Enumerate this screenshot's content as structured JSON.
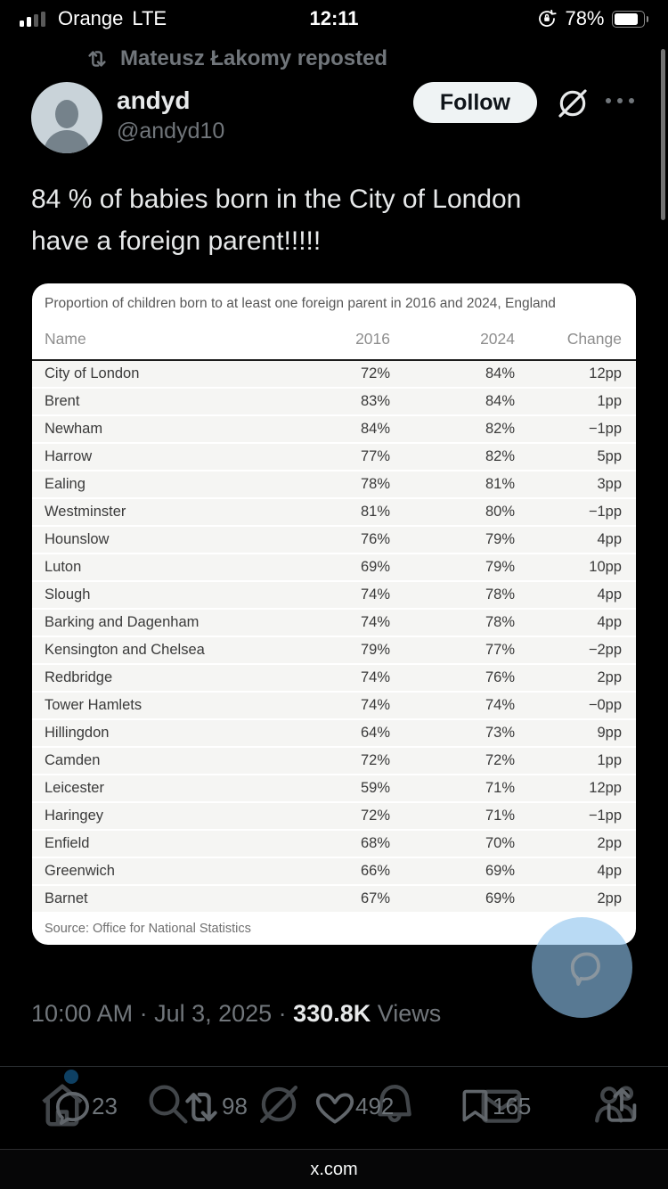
{
  "status_bar": {
    "carrier": "Orange",
    "network": "LTE",
    "time": "12:11",
    "battery_percent": "78%"
  },
  "repost_banner": {
    "text": "Mateusz Łakomy reposted"
  },
  "tweet": {
    "author_name": "andyd",
    "author_handle": "@andyd10",
    "follow_label": "Follow",
    "body_line1": "84 % of babies born in the City of London",
    "body_line2": "have a foreign parent!!!!!"
  },
  "table": {
    "title": "Proportion of children born to at least one foreign parent in 2016 and 2024, England",
    "columns": [
      "Name",
      "2016",
      "2024",
      "Change"
    ],
    "rows": [
      {
        "name": "City of London",
        "y2016": "72%",
        "y2024": "84%",
        "change": "12pp"
      },
      {
        "name": "Brent",
        "y2016": "83%",
        "y2024": "84%",
        "change": "1pp"
      },
      {
        "name": "Newham",
        "y2016": "84%",
        "y2024": "82%",
        "change": "−1pp"
      },
      {
        "name": "Harrow",
        "y2016": "77%",
        "y2024": "82%",
        "change": "5pp"
      },
      {
        "name": "Ealing",
        "y2016": "78%",
        "y2024": "81%",
        "change": "3pp"
      },
      {
        "name": "Westminster",
        "y2016": "81%",
        "y2024": "80%",
        "change": "−1pp"
      },
      {
        "name": "Hounslow",
        "y2016": "76%",
        "y2024": "79%",
        "change": "4pp"
      },
      {
        "name": "Luton",
        "y2016": "69%",
        "y2024": "79%",
        "change": "10pp"
      },
      {
        "name": "Slough",
        "y2016": "74%",
        "y2024": "78%",
        "change": "4pp"
      },
      {
        "name": "Barking and Dagenham",
        "y2016": "74%",
        "y2024": "78%",
        "change": "4pp"
      },
      {
        "name": "Kensington and Chelsea",
        "y2016": "79%",
        "y2024": "77%",
        "change": "−2pp"
      },
      {
        "name": "Redbridge",
        "y2016": "74%",
        "y2024": "76%",
        "change": "2pp"
      },
      {
        "name": "Tower Hamlets",
        "y2016": "74%",
        "y2024": "74%",
        "change": "−0pp"
      },
      {
        "name": "Hillingdon",
        "y2016": "64%",
        "y2024": "73%",
        "change": "9pp"
      },
      {
        "name": "Camden",
        "y2016": "72%",
        "y2024": "72%",
        "change": "1pp"
      },
      {
        "name": "Leicester",
        "y2016": "59%",
        "y2024": "71%",
        "change": "12pp"
      },
      {
        "name": "Haringey",
        "y2016": "72%",
        "y2024": "71%",
        "change": "−1pp"
      },
      {
        "name": "Enfield",
        "y2016": "68%",
        "y2024": "70%",
        "change": "2pp"
      },
      {
        "name": "Greenwich",
        "y2016": "66%",
        "y2024": "69%",
        "change": "4pp"
      },
      {
        "name": "Barnet",
        "y2016": "67%",
        "y2024": "69%",
        "change": "2pp"
      }
    ],
    "source": "Source: Office for National Statistics"
  },
  "meta": {
    "datetime_prefix": "10:00 AM · Jul 3, 2025 · ",
    "views_count": "330.8K",
    "views_label": " Views"
  },
  "actions": {
    "reply_count": "23",
    "repost_count": "98",
    "like_count": "492",
    "bookmark_count": "165"
  },
  "bottom_bar": {
    "url": "x.com"
  },
  "colors": {
    "accent_blue": "#1d9bf0",
    "follow_bg": "#eff3f4",
    "muted_text": "#71767b",
    "body_text": "#e7e9ea",
    "chat_overlay_blue": "#8ec4ee"
  }
}
